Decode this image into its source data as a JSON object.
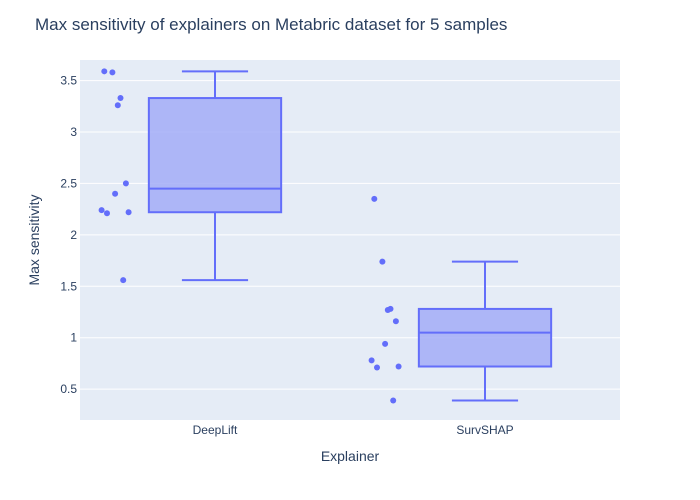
{
  "chart_data": {
    "type": "box",
    "title": "Max sensitivity of explainers on Metabric dataset for 5 samples",
    "xlabel": "Explainer",
    "ylabel": "Max sensitivity",
    "categories": [
      "DeepLift",
      "SurvSHAP"
    ],
    "ylim": [
      0.2,
      3.7
    ],
    "yticks": [
      0.5,
      1,
      1.5,
      2,
      2.5,
      3,
      3.5
    ],
    "yticklabels": [
      "0.5",
      "1",
      "1.5",
      "2",
      "2.5",
      "3",
      "3.5"
    ],
    "series": [
      {
        "name": "DeepLift",
        "points": [
          3.59,
          3.58,
          3.33,
          3.26,
          2.5,
          2.4,
          2.24,
          2.21,
          2.22,
          1.56
        ],
        "box": {
          "min": 1.56,
          "q1": 2.22,
          "median": 2.45,
          "q3": 3.33,
          "max": 3.59
        }
      },
      {
        "name": "SurvSHAP",
        "points": [
          2.35,
          1.74,
          1.28,
          1.27,
          1.16,
          0.94,
          0.78,
          0.71,
          0.72,
          0.39
        ],
        "box": {
          "min": 0.39,
          "q1": 0.72,
          "median": 1.05,
          "q3": 1.28,
          "max": 1.74
        }
      }
    ],
    "grid": true,
    "colors": {
      "plot_bg": "#e5ecf6",
      "grid": "#ffffff",
      "box_fill": "#a3adf7",
      "box_line": "#636efa",
      "points": "#636efa",
      "text": "#2a3f5f"
    }
  }
}
